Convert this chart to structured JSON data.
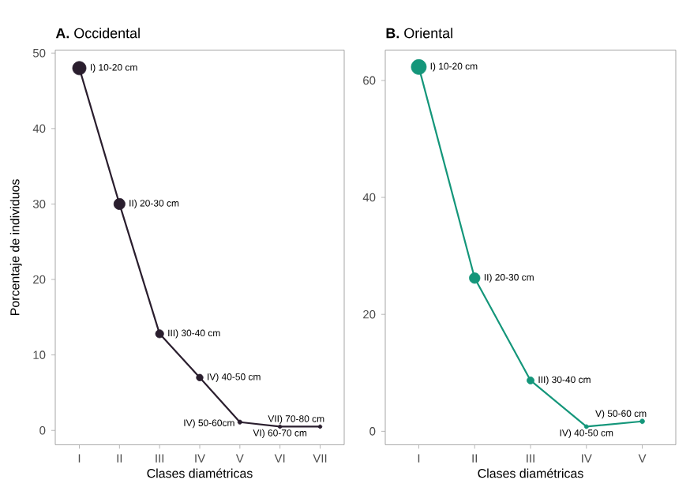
{
  "chart_data": [
    {
      "type": "line",
      "title": "**A.** Occidental",
      "xlabel": "Clases diamétricas",
      "ylabel": "Porcentaje de individuos",
      "categories": [
        "I",
        "II",
        "III",
        "IV",
        "V",
        "VI",
        "VII"
      ],
      "series": [
        {
          "color": "#2a1e2e",
          "values": [
            48,
            30,
            12.8,
            7,
            1.1,
            0.5,
            0.5
          ]
        }
      ],
      "ylim": [
        -1.9,
        50.4
      ],
      "yticks": [
        0,
        10,
        20,
        30,
        40,
        50
      ],
      "marker": "circle",
      "annotations": [
        {
          "text": "I) 10-20 cm",
          "x": "I",
          "y": 48
        },
        {
          "text": "II) 20-30 cm",
          "x": "II",
          "y": 30
        },
        {
          "text": "III) 30-40 cm",
          "x": "III",
          "y": 12.8
        },
        {
          "text": "IV) 40-50 cm",
          "x": "IV",
          "y": 7
        },
        {
          "text": "IV) 50-60cm",
          "x": "V",
          "y": 1.1
        },
        {
          "text": "VI) 60-70 cm",
          "x": "VI",
          "y": 0.5
        },
        {
          "text": "VII) 70-80 cm",
          "x": "VII",
          "y": 0.5
        }
      ]
    },
    {
      "type": "line",
      "title": "**B.** Oriental",
      "xlabel": "Clases diamétricas",
      "categories": [
        "I",
        "II",
        "III",
        "IV",
        "V"
      ],
      "series": [
        {
          "color": "#14967a",
          "values": [
            62.3,
            26.2,
            8.7,
            0.8,
            1.7
          ]
        }
      ],
      "ylim": [
        -2.3,
        65.2
      ],
      "yticks": [
        0,
        20,
        40,
        60
      ],
      "marker": "circle",
      "annotations": [
        {
          "text": "I) 10-20 cm",
          "x": "I",
          "y": 62.3
        },
        {
          "text": "II) 20-30 cm",
          "x": "II",
          "y": 26.2
        },
        {
          "text": "III) 30-40 cm",
          "x": "III",
          "y": 8.7
        },
        {
          "text": "IV) 40-50 cm",
          "x": "IV",
          "y": 0.8
        },
        {
          "text": "V) 50-60 cm",
          "x": "V",
          "y": 1.7
        }
      ]
    }
  ]
}
